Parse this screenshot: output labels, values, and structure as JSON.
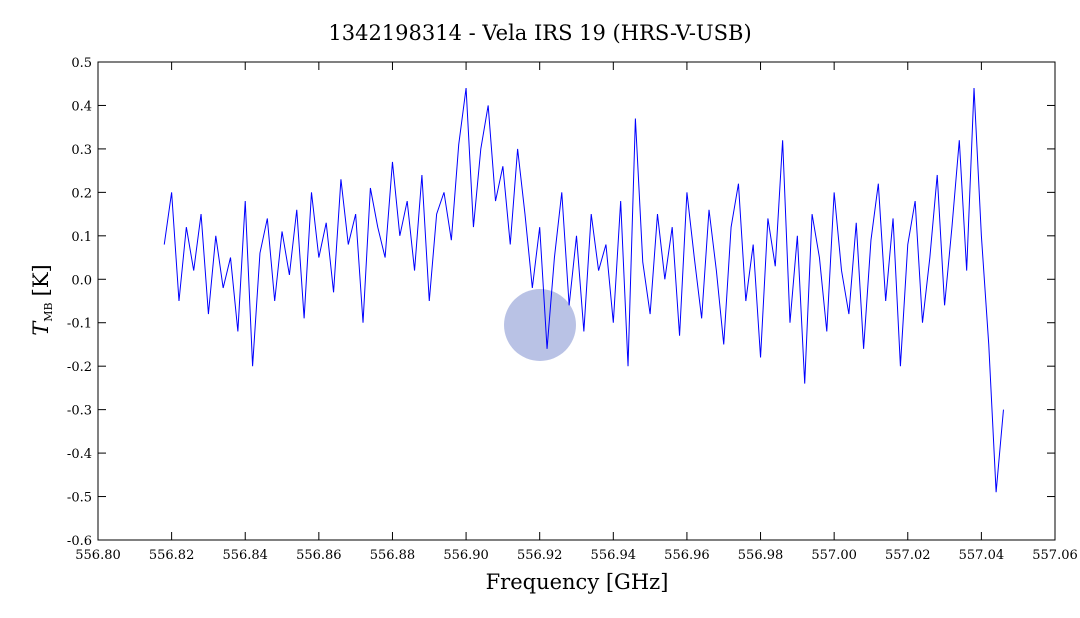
{
  "chart_data": {
    "type": "line",
    "title": "1342198314 - Vela IRS 19 (HRS-V-USB)",
    "xlabel": "Frequency [GHz]",
    "ylabel_symbol": "T",
    "ylabel_subscript": "MB",
    "ylabel_unit": "[K]",
    "xlim": [
      556.8,
      557.06
    ],
    "xticks": [
      {
        "value": 556.8,
        "label": "556.80"
      },
      556.82,
      556.84,
      556.86,
      556.88,
      {
        "value": 556.9,
        "label": "556.90"
      },
      556.92,
      556.94,
      556.96,
      556.98,
      {
        "value": 557.0,
        "label": "557.00"
      },
      557.02,
      557.04,
      557.06
    ],
    "ylim": [
      -0.6,
      0.5
    ],
    "yticks": [
      -0.6,
      -0.5,
      -0.4,
      -0.3,
      -0.2,
      -0.1,
      {
        "value": 0,
        "label": "0.0"
      },
      0.1,
      0.2,
      0.3,
      0.4,
      0.5
    ],
    "x": [
      556.818,
      556.82,
      556.822,
      556.824,
      556.826,
      556.828,
      556.83,
      556.832,
      556.834,
      556.836,
      556.838,
      556.84,
      556.842,
      556.844,
      556.846,
      556.848,
      556.85,
      556.852,
      556.854,
      556.856,
      556.858,
      556.86,
      556.862,
      556.864,
      556.866,
      556.868,
      556.87,
      556.872,
      556.874,
      556.876,
      556.878,
      556.88,
      556.882,
      556.884,
      556.886,
      556.888,
      556.89,
      556.892,
      556.894,
      556.896,
      556.898,
      556.9,
      556.902,
      556.904,
      556.906,
      556.908,
      556.91,
      556.912,
      556.914,
      556.916,
      556.918,
      556.92,
      556.922,
      556.924,
      556.926,
      556.928,
      556.93,
      556.932,
      556.934,
      556.936,
      556.938,
      556.94,
      556.942,
      556.944,
      556.946,
      556.948,
      556.95,
      556.952,
      556.954,
      556.956,
      556.958,
      556.96,
      556.962,
      556.964,
      556.966,
      556.968,
      556.97,
      556.972,
      556.974,
      556.976,
      556.978,
      556.98,
      556.982,
      556.984,
      556.986,
      556.988,
      556.99,
      556.992,
      556.994,
      556.996,
      556.998,
      557.0,
      557.002,
      557.004,
      557.006,
      557.008,
      557.01,
      557.012,
      557.014,
      557.016,
      557.018,
      557.02,
      557.022,
      557.024,
      557.026,
      557.028,
      557.03,
      557.032,
      557.034,
      557.036,
      557.038,
      557.04,
      557.042,
      557.044,
      557.046
    ],
    "series": [
      {
        "color": "#0000ff",
        "values": [
          0.08,
          0.2,
          -0.05,
          0.12,
          0.02,
          0.15,
          -0.08,
          0.1,
          -0.02,
          0.05,
          -0.12,
          0.18,
          -0.2,
          0.06,
          0.14,
          -0.05,
          0.11,
          0.01,
          0.16,
          -0.09,
          0.2,
          0.05,
          0.13,
          -0.03,
          0.23,
          0.08,
          0.15,
          -0.1,
          0.21,
          0.12,
          0.05,
          0.27,
          0.1,
          0.18,
          0.02,
          0.24,
          -0.05,
          0.15,
          0.2,
          0.09,
          0.31,
          0.44,
          0.12,
          0.3,
          0.4,
          0.18,
          0.26,
          0.08,
          0.3,
          0.15,
          -0.02,
          0.12,
          -0.16,
          0.05,
          0.2,
          -0.06,
          0.1,
          -0.12,
          0.15,
          0.02,
          0.08,
          -0.1,
          0.18,
          -0.2,
          0.37,
          0.04,
          -0.08,
          0.15,
          0.0,
          0.12,
          -0.13,
          0.2,
          0.05,
          -0.09,
          0.16,
          0.02,
          -0.15,
          0.12,
          0.22,
          -0.05,
          0.08,
          -0.18,
          0.14,
          0.03,
          0.32,
          -0.1,
          0.1,
          -0.24,
          0.15,
          0.05,
          -0.12,
          0.2,
          0.02,
          -0.08,
          0.13,
          -0.16,
          0.09,
          0.22,
          -0.05,
          0.14,
          -0.2,
          0.08,
          0.18,
          -0.1,
          0.05,
          0.24,
          -0.06,
          0.12,
          0.32,
          0.02,
          0.44,
          0.1,
          -0.15,
          -0.49,
          -0.3
        ]
      }
    ]
  }
}
